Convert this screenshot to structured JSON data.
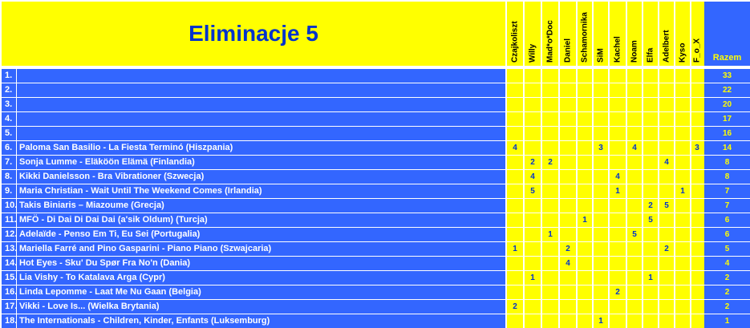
{
  "title": "Eliminacje 5",
  "total_header": "Razem",
  "judges": [
    "Czajkoliszt",
    "Willy",
    "Mad*o*Doc",
    "Daniel",
    "Schamornika",
    "SiM",
    "Kachel",
    "Noam",
    "Elfa",
    "Adelbert",
    "Kyso",
    "F_o_X"
  ],
  "rows": [
    {
      "rank": "1.",
      "song": "",
      "scores": [
        "",
        "",
        "",
        "",
        "",
        "",
        "",
        "",
        "",
        "",
        "",
        ""
      ],
      "total": "33"
    },
    {
      "rank": "2.",
      "song": "",
      "scores": [
        "",
        "",
        "",
        "",
        "",
        "",
        "",
        "",
        "",
        "",
        "",
        ""
      ],
      "total": "22"
    },
    {
      "rank": "3.",
      "song": "",
      "scores": [
        "",
        "",
        "",
        "",
        "",
        "",
        "",
        "",
        "",
        "",
        "",
        ""
      ],
      "total": "20"
    },
    {
      "rank": "4.",
      "song": "",
      "scores": [
        "",
        "",
        "",
        "",
        "",
        "",
        "",
        "",
        "",
        "",
        "",
        ""
      ],
      "total": "17"
    },
    {
      "rank": "5.",
      "song": "",
      "scores": [
        "",
        "",
        "",
        "",
        "",
        "",
        "",
        "",
        "",
        "",
        "",
        ""
      ],
      "total": "16"
    },
    {
      "rank": "6.",
      "song": "Paloma San Basilio - La Fiesta Terminó (Hiszpania)",
      "scores": [
        "4",
        "",
        "",
        "",
        "",
        "3",
        "",
        "4",
        "",
        "",
        "",
        "3"
      ],
      "total": "14"
    },
    {
      "rank": "7.",
      "song": "Sonja Lumme - Eläköön Elämä (Finlandia)",
      "scores": [
        "",
        "2",
        "2",
        "",
        "",
        "",
        "",
        "",
        "",
        "4",
        "",
        ""
      ],
      "total": "8"
    },
    {
      "rank": "8.",
      "song": "Kikki Danielsson - Bra Vibrationer (Szwecja)",
      "scores": [
        "",
        "4",
        "",
        "",
        "",
        "",
        "4",
        "",
        "",
        "",
        "",
        ""
      ],
      "total": "8"
    },
    {
      "rank": "9.",
      "song": "Maria Christian - Wait Until The Weekend Comes (Irlandia)",
      "scores": [
        "",
        "5",
        "",
        "",
        "",
        "",
        "1",
        "",
        "",
        "",
        "1",
        ""
      ],
      "total": "7"
    },
    {
      "rank": "10.",
      "song": "Takis Biniaris – Miazoume (Grecja)",
      "scores": [
        "",
        "",
        "",
        "",
        "",
        "",
        "",
        "",
        "2",
        "5",
        "",
        ""
      ],
      "total": "7"
    },
    {
      "rank": "11.",
      "song": "MFÖ - Di Dai Di Dai Dai (a'sik Oldum) (Turcja)",
      "scores": [
        "",
        "",
        "",
        "",
        "1",
        "",
        "",
        "",
        "5",
        "",
        "",
        ""
      ],
      "total": "6"
    },
    {
      "rank": "12.",
      "song": "Adelaïde - Penso Em Ti, Eu Sei (Portugalia)",
      "scores": [
        "",
        "",
        "1",
        "",
        "",
        "",
        "",
        "5",
        "",
        "",
        "",
        ""
      ],
      "total": "6"
    },
    {
      "rank": "13.",
      "song": "Mariella Farré and Pino Gasparini - Piano Piano (Szwajcaria)",
      "scores": [
        "1",
        "",
        "",
        "2",
        "",
        "",
        "",
        "",
        "",
        "2",
        "",
        ""
      ],
      "total": "5"
    },
    {
      "rank": "14.",
      "song": "Hot Eyes - Sku' Du Spør Fra No'n (Dania)",
      "scores": [
        "",
        "",
        "",
        "4",
        "",
        "",
        "",
        "",
        "",
        "",
        "",
        ""
      ],
      "total": "4"
    },
    {
      "rank": "15.",
      "song": "Lia Vishy - To Katalava Arga (Cypr)",
      "scores": [
        "",
        "1",
        "",
        "",
        "",
        "",
        "",
        "",
        "1",
        "",
        "",
        ""
      ],
      "total": "2"
    },
    {
      "rank": "16.",
      "song": "Linda Lepomme - Laat Me Nu Gaan (Belgia)",
      "scores": [
        "",
        "",
        "",
        "",
        "",
        "",
        "2",
        "",
        "",
        "",
        "",
        ""
      ],
      "total": "2"
    },
    {
      "rank": "17.",
      "song": "Vikki - Love Is... (Wielka Brytania)",
      "scores": [
        "2",
        "",
        "",
        "",
        "",
        "",
        "",
        "",
        "",
        "",
        "",
        ""
      ],
      "total": "2"
    },
    {
      "rank": "18.",
      "song": "The Internationals - Children, Kinder, Enfants (Luksemburg)",
      "scores": [
        "",
        "",
        "",
        "",
        "",
        "1",
        "",
        "",
        "",
        "",
        "",
        ""
      ],
      "total": "1"
    }
  ],
  "colors": {
    "yellow": "#ffff00",
    "blue": "#3366ff",
    "black": "#000000",
    "title_text": "#0033cc"
  }
}
